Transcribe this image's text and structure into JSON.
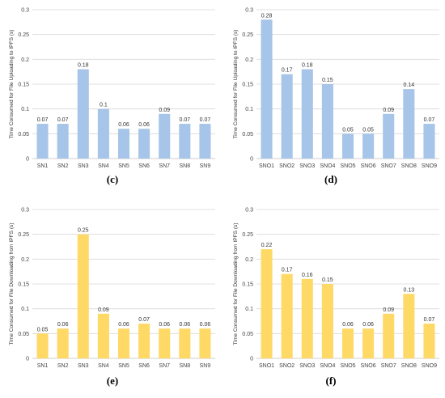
{
  "colors": {
    "blue": "#a7c5e8",
    "yellow": "#ffd966",
    "grid": "#d9d9d9"
  },
  "chart_data": [
    {
      "type": "bar",
      "panel_label": "(c)",
      "ylabel": "Time Consumed for File Uploading to IPFS (s)",
      "categories": [
        "SN1",
        "SN2",
        "SN3",
        "SN4",
        "SN5",
        "SN6",
        "SN7",
        "SN8",
        "SN9"
      ],
      "values": [
        0.07,
        0.07,
        0.18,
        0.1,
        0.06,
        0.06,
        0.09,
        0.07,
        0.07
      ],
      "data_labels": [
        "0.07",
        "0.07",
        "0.18",
        "0.1",
        "0.06",
        "0.06",
        "0.09",
        "0.07",
        "0.07"
      ],
      "ylim": [
        0,
        0.3
      ],
      "yticks": [
        "0",
        "0.05",
        "0.1",
        "0.15",
        "0.2",
        "0.25",
        "0.3"
      ],
      "color": "#a7c5e8",
      "grid": true
    },
    {
      "type": "bar",
      "panel_label": "(d)",
      "ylabel": "Time Consumed for File Uploading to IPFS (s)",
      "categories": [
        "SNO1",
        "SNO2",
        "SNO3",
        "SNO4",
        "SNO5",
        "SNO6",
        "SNO7",
        "SNO8",
        "SNO9"
      ],
      "values": [
        0.28,
        0.17,
        0.18,
        0.15,
        0.05,
        0.05,
        0.09,
        0.14,
        0.07
      ],
      "data_labels": [
        "0.28",
        "0.17",
        "0.18",
        "0.15",
        "0.05",
        "0.05",
        "0.09",
        "0.14",
        "0.07"
      ],
      "ylim": [
        0,
        0.3
      ],
      "yticks": [
        "0",
        "0.05",
        "0.1",
        "0.15",
        "0.2",
        "0.25",
        "0.3"
      ],
      "color": "#a7c5e8",
      "grid": true
    },
    {
      "type": "bar",
      "panel_label": "(e)",
      "ylabel": "Time Consumed for File Downloading from IPFS (s)",
      "categories": [
        "SN1",
        "SN2",
        "SN3",
        "SN4",
        "SN5",
        "SN6",
        "SN7",
        "SN8",
        "SN9"
      ],
      "values": [
        0.05,
        0.06,
        0.25,
        0.09,
        0.06,
        0.07,
        0.06,
        0.06,
        0.06
      ],
      "data_labels": [
        "0.05",
        "0.06",
        "0.25",
        "0.09",
        "0.06",
        "0.07",
        "0.06",
        "0.06",
        "0.06"
      ],
      "ylim": [
        0,
        0.3
      ],
      "yticks": [
        "0",
        "0.05",
        "0.1",
        "0.15",
        "0.2",
        "0.25",
        "0.3"
      ],
      "color": "#ffd966",
      "grid": true
    },
    {
      "type": "bar",
      "panel_label": "(f)",
      "ylabel": "Time Consumed for File Downloading from IPFS (s)",
      "categories": [
        "SNO1",
        "SNO2",
        "SNO3",
        "SNO4",
        "SNO5",
        "SNO6",
        "SNO7",
        "SNO8",
        "SNO9"
      ],
      "values": [
        0.22,
        0.17,
        0.16,
        0.15,
        0.06,
        0.06,
        0.09,
        0.13,
        0.07
      ],
      "data_labels": [
        "0.22",
        "0.17",
        "0.16",
        "0.15",
        "0.06",
        "0.06",
        "0.09",
        "0.13",
        "0.07"
      ],
      "ylim": [
        0,
        0.3
      ],
      "yticks": [
        "0",
        "0.05",
        "0.1",
        "0.15",
        "0.2",
        "0.25",
        "0.3"
      ],
      "color": "#ffd966",
      "grid": true
    }
  ]
}
